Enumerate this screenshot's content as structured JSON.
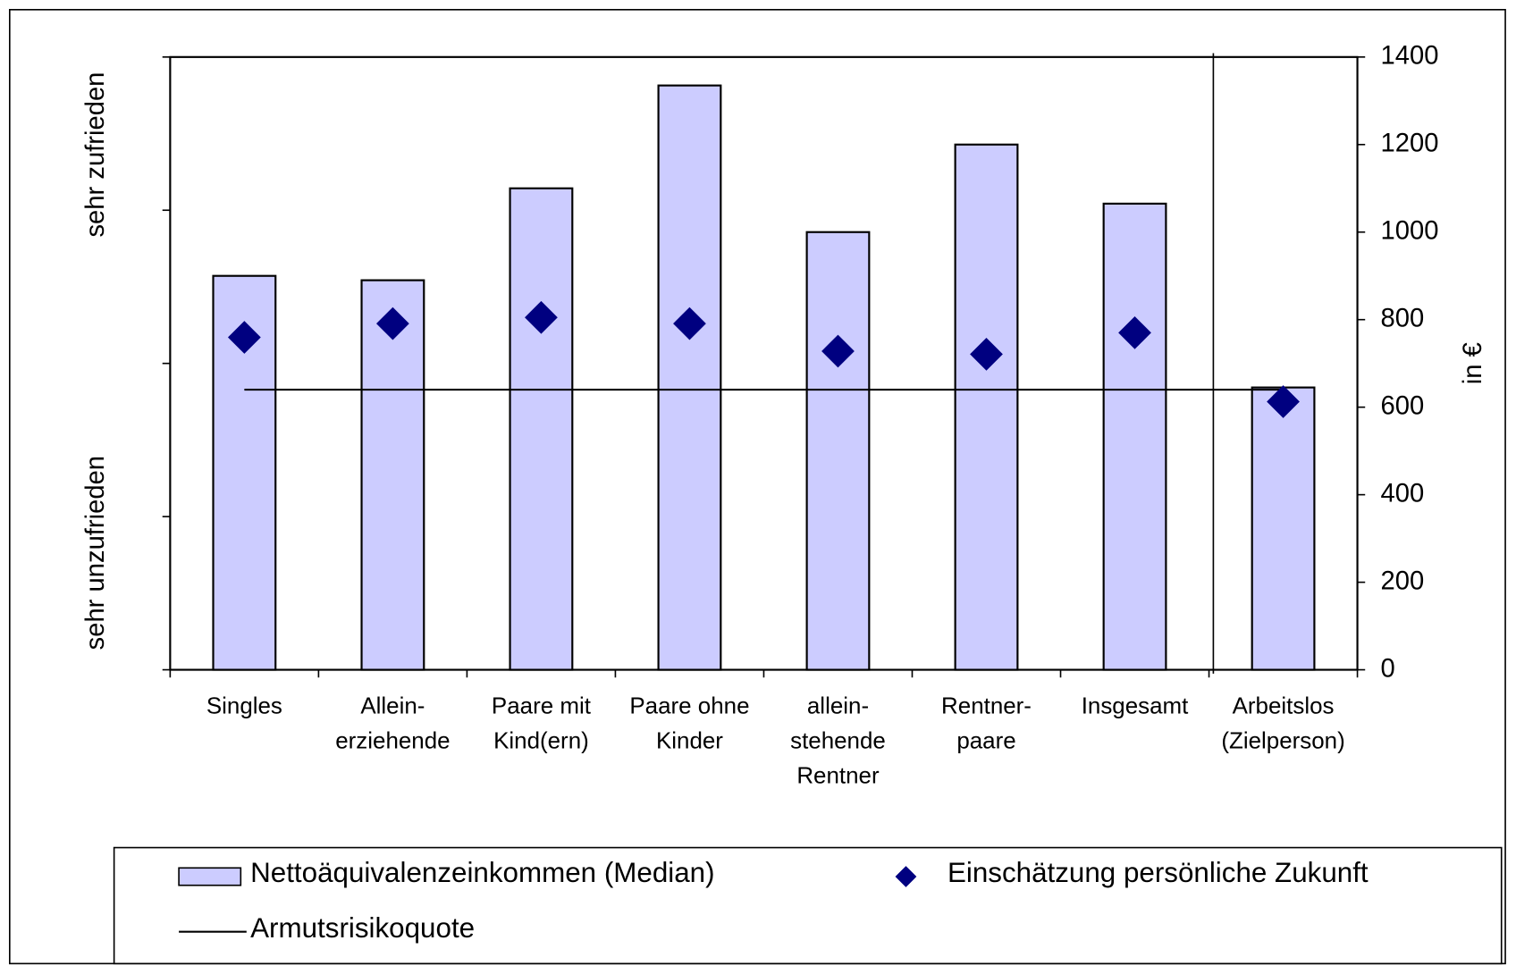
{
  "chart_data": {
    "type": "bar",
    "categories": [
      [
        "Singles"
      ],
      [
        "Allein-",
        "erziehende"
      ],
      [
        "Paare mit",
        "Kind(ern)"
      ],
      [
        "Paare ohne",
        "Kinder"
      ],
      [
        "allein-",
        "stehende",
        "Rentner"
      ],
      [
        "Rentner-",
        "paare"
      ],
      [
        "Insgesamt"
      ],
      [
        "Arbeitslos",
        "(Zielperson)"
      ]
    ],
    "series": [
      {
        "name": "Nettoäquivalenzeinkommen (Median)",
        "type": "bar",
        "axis": "y2",
        "color": "#ccccff",
        "values": [
          900,
          890,
          1100,
          1335,
          1000,
          1200,
          1065,
          645
        ]
      },
      {
        "name": "Einschätzung persönliche Zukunft",
        "type": "scatter",
        "axis": "y",
        "color": "#000080",
        "values": [
          2.17,
          2.26,
          2.3,
          2.26,
          2.08,
          2.06,
          2.2,
          1.75
        ]
      },
      {
        "name": "Armutsrisikoquote",
        "type": "line",
        "axis": "y2",
        "color": "#000000",
        "values": [
          640,
          640,
          640,
          640,
          640,
          640,
          640,
          640
        ]
      }
    ],
    "ylabel_top": "sehr zufrieden",
    "ylabel_bottom": "sehr unzufrieden",
    "ylim": [
      0,
      4
    ],
    "yticks": [
      0,
      1,
      2,
      3,
      4
    ],
    "y2label": "in €",
    "y2lim": [
      0,
      1400
    ],
    "y2ticks": [
      0,
      200,
      400,
      600,
      800,
      1000,
      1200,
      1400
    ],
    "legend": "bottom"
  }
}
